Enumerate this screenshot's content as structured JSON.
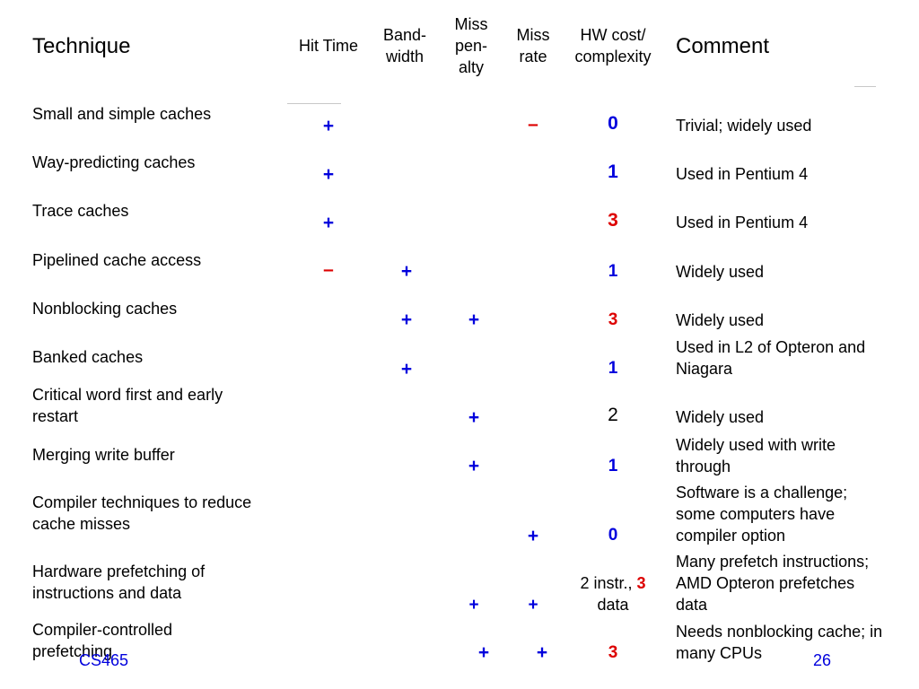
{
  "header": {
    "technique": "Technique",
    "hit_time": "Hit Time",
    "bandwidth_1": "Band-",
    "bandwidth_2": "width",
    "miss_penalty_1": "Miss",
    "miss_penalty_2": "pen-",
    "miss_penalty_3": "alty",
    "miss_rate_1": "Miss",
    "miss_rate_2": "rate",
    "hw_cost_1": "HW cost/",
    "hw_cost_2": "complexity",
    "comment": "Comment"
  },
  "rows": [
    {
      "technique": [
        "Small and simple caches"
      ],
      "hit_time": "+",
      "bandwidth": "",
      "miss_penalty": "",
      "miss_rate": "–",
      "hw_cost": "0",
      "comment": [
        "Trivial; widely used"
      ]
    },
    {
      "technique": [
        "Way-predicting caches"
      ],
      "hit_time": "+",
      "bandwidth": "",
      "miss_penalty": "",
      "miss_rate": "",
      "hw_cost": "1",
      "comment": [
        "Used in Pentium 4"
      ]
    },
    {
      "technique": [
        "Trace caches"
      ],
      "hit_time": "+",
      "bandwidth": "",
      "miss_penalty": "",
      "miss_rate": "",
      "hw_cost": "3",
      "comment": [
        "Used in Pentium 4"
      ]
    },
    {
      "technique": [
        "Pipelined cache access"
      ],
      "hit_time": "–",
      "bandwidth": "+",
      "miss_penalty": "",
      "miss_rate": "",
      "hw_cost": "1",
      "comment": [
        "Widely used"
      ]
    },
    {
      "technique": [
        "Nonblocking caches"
      ],
      "hit_time": "",
      "bandwidth": "+",
      "miss_penalty": "+",
      "miss_rate": "",
      "hw_cost": "3",
      "comment": [
        "Widely used"
      ]
    },
    {
      "technique": [
        "Banked caches"
      ],
      "hit_time": "",
      "bandwidth": "+",
      "miss_penalty": "",
      "miss_rate": "",
      "hw_cost": "1",
      "comment": [
        "Used in L2 of Opteron and",
        "Niagara"
      ]
    },
    {
      "technique": [
        "Critical word first and early",
        "restart"
      ],
      "hit_time": "",
      "bandwidth": "",
      "miss_penalty": "+",
      "miss_rate": "",
      "hw_cost": "2",
      "comment": [
        "Widely used"
      ]
    },
    {
      "technique": [
        "Merging write buffer"
      ],
      "hit_time": "",
      "bandwidth": "",
      "miss_penalty": "+",
      "miss_rate": "",
      "hw_cost": "1",
      "comment": [
        "Widely used with write",
        "through"
      ]
    },
    {
      "technique": [
        "Compiler techniques to reduce",
        "cache misses"
      ],
      "hit_time": "",
      "bandwidth": "",
      "miss_penalty": "",
      "miss_rate": "+",
      "hw_cost": "0",
      "comment": [
        "Software is a challenge;",
        "some computers have",
        "compiler option"
      ]
    },
    {
      "technique": [
        "Hardware prefetching of",
        "instructions and data"
      ],
      "hit_time": "",
      "bandwidth": "",
      "miss_penalty": "+",
      "miss_rate": "+",
      "hw_cost_parts": [
        "2 instr., ",
        "3",
        "data"
      ],
      "comment": [
        "Many prefetch instructions;",
        "AMD Opteron prefetches",
        "data"
      ]
    },
    {
      "technique": [
        "Compiler-controlled",
        "prefetching"
      ],
      "hit_time": "",
      "bandwidth": "",
      "miss_penalty": "+",
      "miss_rate": "+",
      "hw_cost": "3",
      "comment": [
        "Needs nonblocking cache; in",
        "many CPUs"
      ]
    }
  ],
  "footer": {
    "left": "CS465",
    "right": "26"
  },
  "colors": {
    "plus": "#0000dd",
    "minus": "#dd0000",
    "cost_low": "#0000dd",
    "cost_high": "#dd0000"
  }
}
